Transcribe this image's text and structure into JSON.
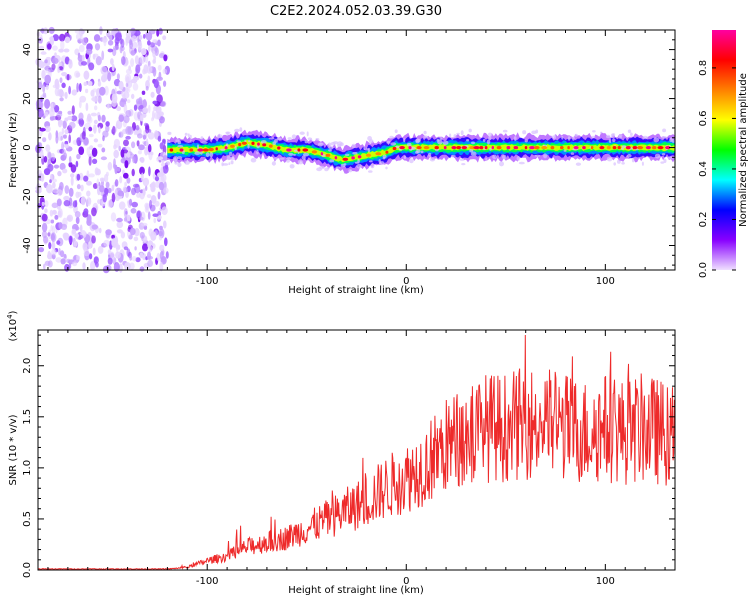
{
  "figure": {
    "title": "C2E2.2024.052.03.39.G30"
  },
  "chart_data": [
    {
      "type": "heatmap",
      "xlabel": "Height of straight line (km)",
      "ylabel": "Frequency (Hz)",
      "xlim": [
        -185,
        135
      ],
      "ylim": [
        -50,
        48
      ],
      "x_ticks": [
        -100,
        0,
        100
      ],
      "y_ticks": [
        -40,
        -20,
        0,
        20,
        40
      ],
      "colorbar": {
        "label": "Normalized spectral amplitude",
        "range": [
          0,
          0.95
        ],
        "ticks": [
          0.0,
          0.2,
          0.4,
          0.6,
          0.8
        ],
        "colormap": [
          "#f0e0ff",
          "#8800ff",
          "#0000ff",
          "#00ffff",
          "#00ff00",
          "#ffff00",
          "#ff8000",
          "#ff0000",
          "#ff00a0"
        ]
      },
      "noise_region_x": [
        -185,
        -120
      ],
      "ridge": {
        "x": [
          -120,
          -110,
          -100,
          -90,
          -80,
          -70,
          -60,
          -50,
          -40,
          -32,
          -25,
          -18,
          -10,
          -5,
          0,
          10,
          20,
          30,
          40,
          50,
          60,
          70,
          80,
          90,
          100,
          110,
          120,
          135
        ],
        "y": [
          -1,
          -1,
          -1,
          0,
          2,
          1,
          -1,
          -1,
          -3,
          -5,
          -4,
          -3,
          -2,
          0,
          0,
          0,
          0,
          0,
          0,
          0,
          0,
          0,
          0,
          0,
          0,
          0,
          0,
          0
        ]
      }
    },
    {
      "type": "line",
      "xlabel": "Height of straight line (km)",
      "ylabel": "SNR (10 * v/v)",
      "y_scale_label": "(x10",
      "y_scale_exponent": "4",
      "xlim": [
        -185,
        135
      ],
      "ylim": [
        0,
        2.35
      ],
      "x_ticks": [
        -100,
        0,
        100
      ],
      "y_ticks": [
        0.0,
        0.5,
        1.0,
        1.5,
        2.0
      ],
      "series": [
        {
          "color": "#ee2a2a",
          "envelope": {
            "x": [
              -185,
              -120,
              -110,
              -100,
              -90,
              -80,
              -70,
              -60,
              -50,
              -40,
              -30,
              -20,
              -10,
              0,
              10,
              20,
              30,
              40,
              50,
              60,
              70,
              80,
              90,
              100,
              110,
              120,
              135
            ],
            "y": [
              0.01,
              0.01,
              0.03,
              0.1,
              0.15,
              0.25,
              0.3,
              0.35,
              0.45,
              0.55,
              0.65,
              0.75,
              0.9,
              1.0,
              1.15,
              1.35,
              1.45,
              1.55,
              1.55,
              1.6,
              1.6,
              1.55,
              1.5,
              1.55,
              1.5,
              1.55,
              1.45
            ]
          }
        }
      ]
    }
  ]
}
